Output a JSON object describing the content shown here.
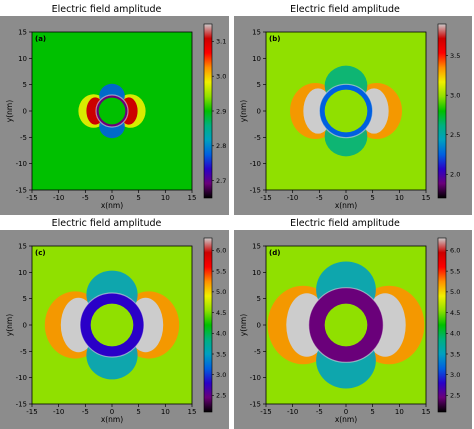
{
  "chart_data": [
    {
      "type": "heatmap",
      "panel_label": "(a)",
      "title": "Electric field amplitude",
      "xlabel": "x(nm)",
      "ylabel": "y(nm)",
      "xlim": [
        -15,
        15
      ],
      "ylim": [
        -15,
        15
      ],
      "x_ticks": [
        "-15",
        "-10",
        "-5",
        "0",
        "5",
        "10",
        "15"
      ],
      "y_ticks": [
        "15",
        "10",
        "5",
        "0",
        "-5",
        "-10",
        "-15"
      ],
      "colorbar_range": [
        2.65,
        3.15
      ],
      "colorbar_ticks": [
        "3.1",
        "3.0",
        "2.9",
        "2.8",
        "2.7"
      ],
      "colorbar_tick_values": [
        3.1,
        3.0,
        2.9,
        2.8,
        2.7
      ],
      "background_value": 2.88,
      "features": {
        "core_radius": 2.5,
        "shell_outer_radius": 3.0,
        "shell_value": 2.68,
        "hotspot_value": 3.12
      }
    },
    {
      "type": "heatmap",
      "panel_label": "(b)",
      "title": "Electric field amplitude",
      "xlabel": "x(nm)",
      "ylabel": "y(nm)",
      "xlim": [
        -15,
        15
      ],
      "ylim": [
        -15,
        15
      ],
      "x_ticks": [
        "-15",
        "-10",
        "-5",
        "0",
        "5",
        "10",
        "15"
      ],
      "y_ticks": [
        "15",
        "10",
        "5",
        "0",
        "-5",
        "-10",
        "-15"
      ],
      "colorbar_range": [
        1.7,
        3.9
      ],
      "colorbar_ticks": [
        "3.5",
        "3.0",
        "2.5",
        "2.0"
      ],
      "colorbar_tick_values": [
        3.5,
        3.0,
        2.5,
        2.0
      ],
      "background_value": 3.0,
      "features": {
        "core_radius": 4.0,
        "shell_outer_radius": 5.0,
        "shell_value": 2.2,
        "hotspot_value": 3.85
      }
    },
    {
      "type": "heatmap",
      "panel_label": "(c)",
      "title": "Electric field amplitude",
      "xlabel": "x(nm)",
      "ylabel": "y(nm)",
      "xlim": [
        -15,
        15
      ],
      "ylim": [
        -15,
        15
      ],
      "x_ticks": [
        "-15",
        "-10",
        "-5",
        "0",
        "5",
        "10",
        "15"
      ],
      "y_ticks": [
        "15",
        "10",
        "5",
        "0",
        "-5",
        "-10",
        "-15"
      ],
      "colorbar_range": [
        2.1,
        6.3
      ],
      "colorbar_ticks": [
        "6.0",
        "5.5",
        "5.0",
        "4.5",
        "4.0",
        "3.5",
        "3.0",
        "2.5"
      ],
      "colorbar_tick_values": [
        6.0,
        5.5,
        5.0,
        4.5,
        4.0,
        3.5,
        3.0,
        2.5
      ],
      "background_value": 4.4,
      "features": {
        "core_radius": 4.0,
        "shell_outer_radius": 6.0,
        "shell_value": 2.9,
        "hotspot_value": 6.2
      }
    },
    {
      "type": "heatmap",
      "panel_label": "(d)",
      "title": "Electric field amplitude",
      "xlabel": "x(nm)",
      "ylabel": "y(nm)",
      "xlim": [
        -15,
        15
      ],
      "ylim": [
        -15,
        15
      ],
      "x_ticks": [
        "-15",
        "-10",
        "-5",
        "0",
        "5",
        "10",
        "15"
      ],
      "y_ticks": [
        "15",
        "10",
        "5",
        "0",
        "-5",
        "-10",
        "-15"
      ],
      "colorbar_range": [
        2.1,
        6.3
      ],
      "colorbar_ticks": [
        "6.0",
        "5.5",
        "5.0",
        "4.5",
        "4.0",
        "3.5",
        "3.0",
        "2.5"
      ],
      "colorbar_tick_values": [
        6.0,
        5.5,
        5.0,
        4.5,
        4.0,
        3.5,
        3.0,
        2.5
      ],
      "background_value": 4.4,
      "features": {
        "core_radius": 4.0,
        "shell_outer_radius": 7.0,
        "shell_value": 2.5,
        "hotspot_value": 6.2
      }
    }
  ],
  "colors": {
    "frame": "#8c8c8c",
    "colormap": "nipy_spectral-like",
    "colormap_stops": [
      "#000000",
      "#6a007a",
      "#2a00c8",
      "#0060e0",
      "#00a0c0",
      "#00b080",
      "#00c000",
      "#90e000",
      "#f0f000",
      "#ff9000",
      "#ff0000",
      "#cc0000",
      "#cccccc"
    ]
  }
}
